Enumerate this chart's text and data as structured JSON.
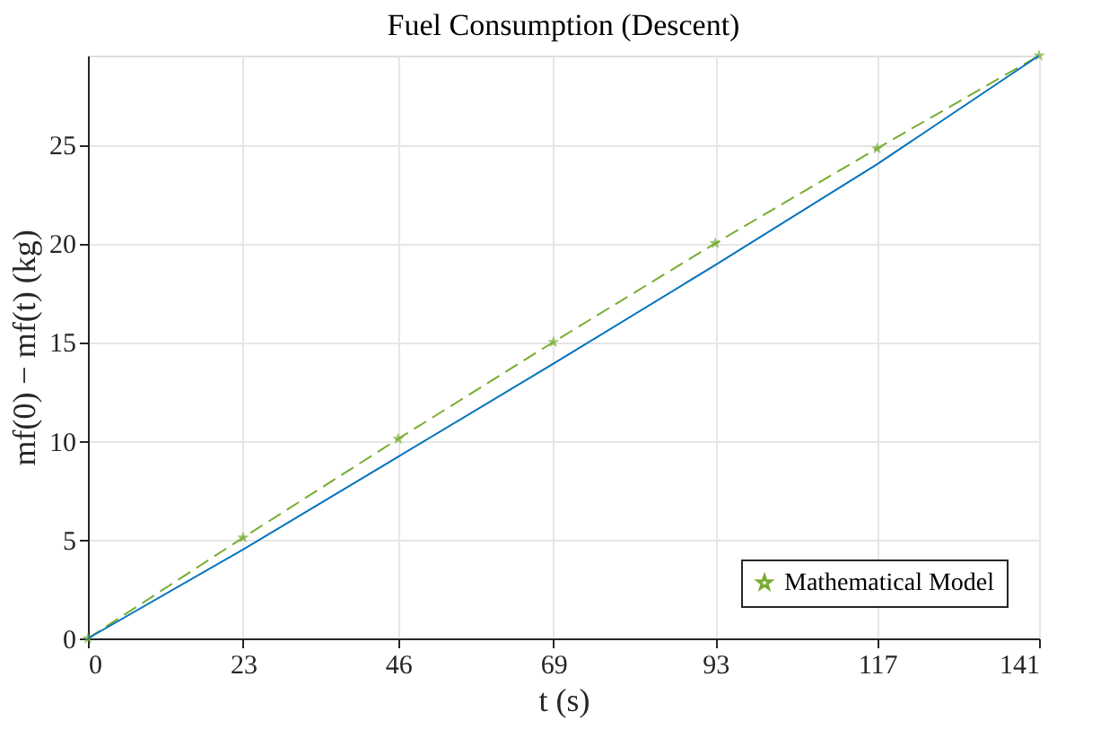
{
  "chart_data": {
    "type": "line",
    "title": "Fuel Consumption (Descent)",
    "xlabel": "t (s)",
    "ylabel": "mf(0) − mf(t) (kg)",
    "x": [
      0,
      23,
      46,
      69,
      93,
      117,
      141
    ],
    "series": [
      {
        "name": "Mathematical Model",
        "color": "#77ac30",
        "values": [
          0,
          5.1,
          10.1,
          15,
          20,
          24.8,
          29.5
        ],
        "marker": "star",
        "line_style": "dashed"
      },
      {
        "color": "#0072bd",
        "values": [
          0,
          4.5,
          9.2,
          13.9,
          18.9,
          24.0,
          29.5
        ],
        "marker": "none",
        "line_style": "solid"
      }
    ],
    "xlim": [
      0,
      141
    ],
    "xticks": [
      0,
      23,
      46,
      69,
      93,
      117,
      141
    ],
    "ylim": [
      0,
      29.5
    ],
    "yticks": [
      0,
      5,
      10,
      15,
      20,
      25
    ],
    "grid": true,
    "legend": "bottom right"
  }
}
